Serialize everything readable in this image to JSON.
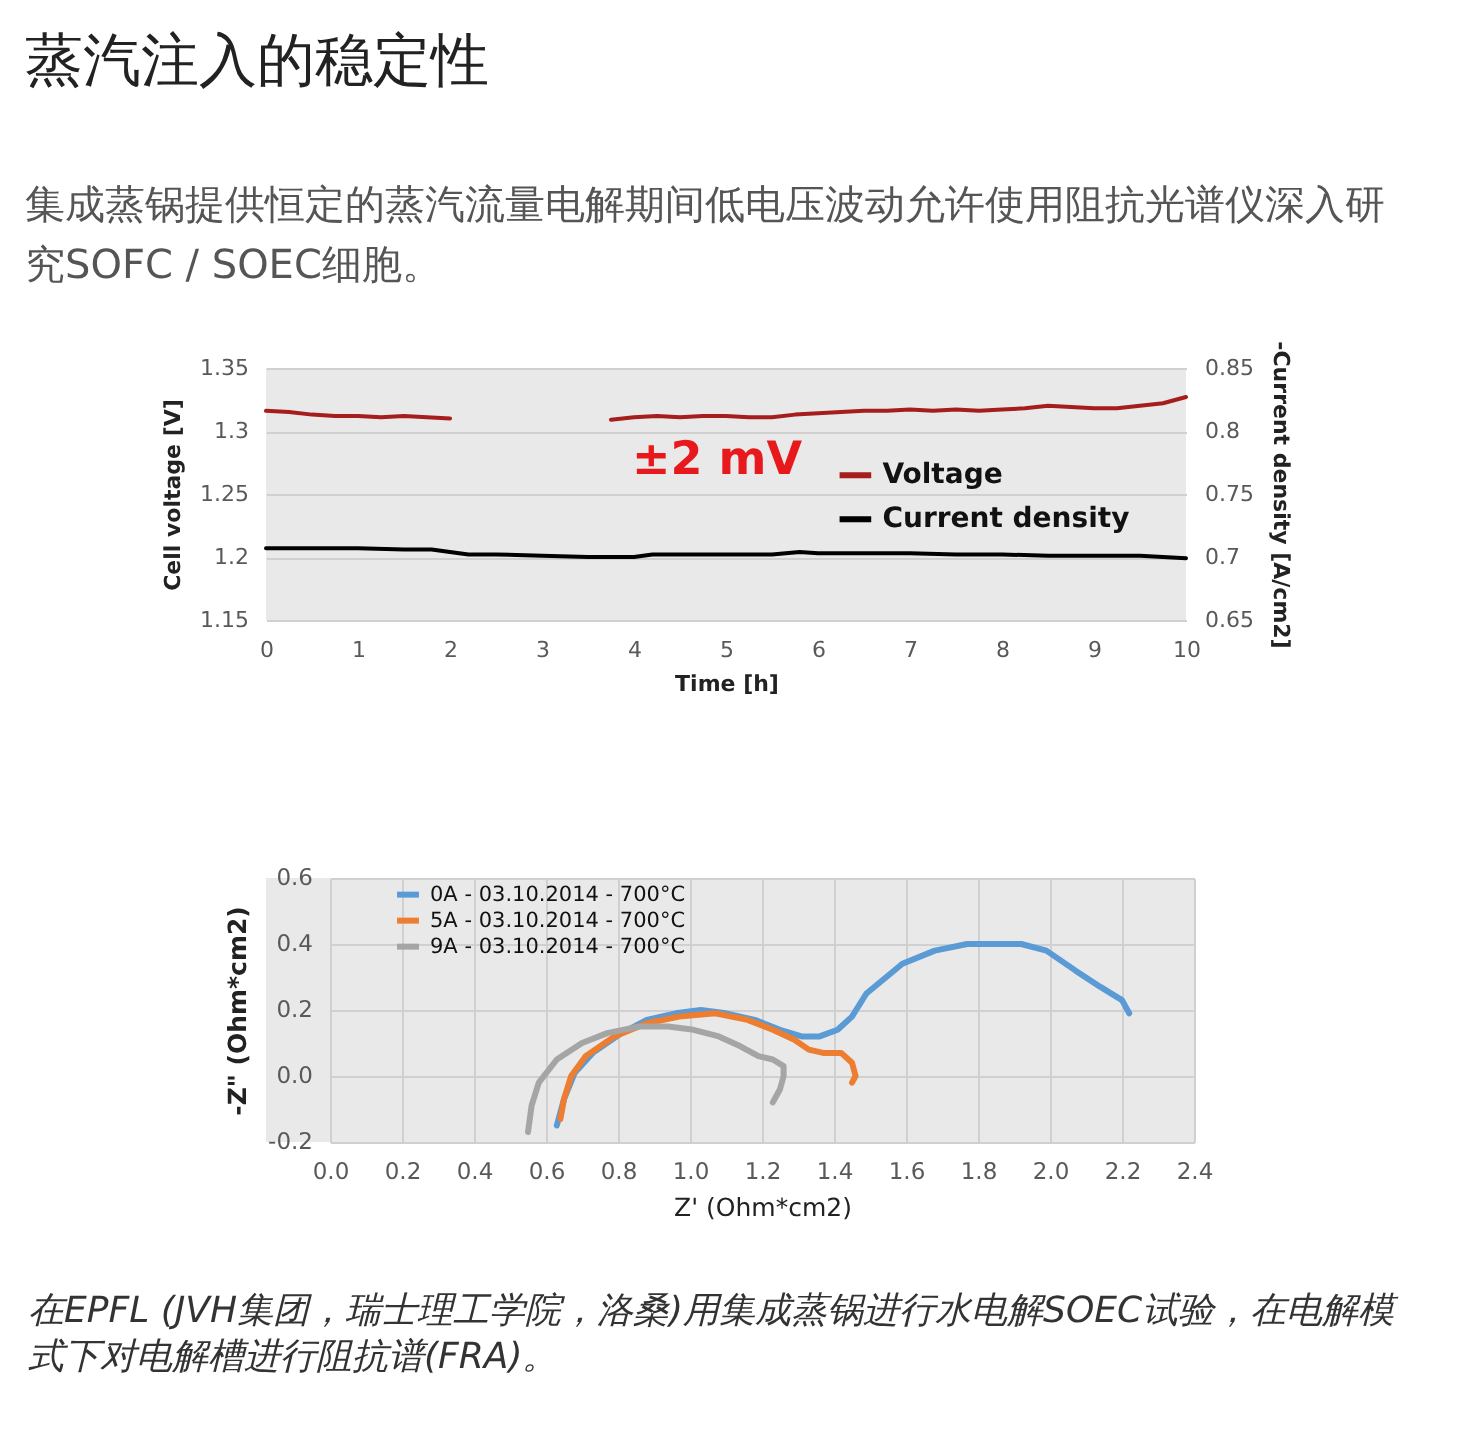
{
  "chart_data": [
    {
      "type": "line",
      "title": "蒸汽注入的稳定性",
      "subtitle": "集成蒸锅提供恒定的蒸汽流量电解期间低电压波动允许使用阻抗光谱仪深入研究SOFC / SOEC细胞。",
      "xlabel": "Time [h]",
      "ylabel": "Cell voltage [V]",
      "y2label": "-Current density [A/cm2]",
      "annotations": [
        "±2 mV"
      ],
      "xlim": [
        0,
        10
      ],
      "xticks": [
        0,
        1,
        2,
        3,
        4,
        5,
        6,
        7,
        8,
        9,
        10
      ],
      "ylim": [
        1.15,
        1.35
      ],
      "yticks": [
        1.15,
        1.2,
        1.25,
        1.3,
        1.35
      ],
      "y2lim": [
        0.65,
        0.85
      ],
      "y2ticks": [
        0.65,
        0.7,
        0.75,
        0.8,
        0.85
      ],
      "grid": "y",
      "legend": "right",
      "series": [
        {
          "name": "Voltage",
          "color": "#a51d1d",
          "x": [
            0,
            0.25,
            0.5,
            0.75,
            1,
            1.25,
            1.5,
            1.75,
            2,
            2.25,
            2.5,
            2.75,
            3,
            3.25,
            3.5,
            3.75,
            4,
            4.25,
            4.5,
            4.75,
            5,
            5.25,
            5.5,
            5.75,
            6,
            6.25,
            6.5,
            6.75,
            7,
            7.25,
            7.5,
            7.75,
            8,
            8.25,
            8.5,
            8.75,
            9,
            9.25,
            9.5,
            9.75,
            10
          ],
          "values": [
            1.316,
            1.315,
            1.313,
            1.312,
            1.312,
            1.311,
            1.312,
            1.311,
            1.31,
            null,
            null,
            null,
            null,
            null,
            null,
            1.309,
            1.311,
            1.312,
            1.311,
            1.312,
            1.312,
            1.311,
            1.311,
            1.313,
            1.314,
            1.315,
            1.316,
            1.316,
            1.317,
            1.316,
            1.317,
            1.316,
            1.317,
            1.318,
            1.32,
            1.319,
            1.318,
            1.318,
            1.32,
            1.322,
            1.327
          ]
        },
        {
          "name": "Current density",
          "color": "#000000",
          "axis": "y2",
          "x": [
            0,
            0.5,
            1,
            1.5,
            1.8,
            2,
            2.2,
            2.5,
            3,
            3.5,
            4,
            4.2,
            4.5,
            5,
            5.5,
            5.8,
            6,
            6.5,
            7,
            7.5,
            8,
            8.5,
            9,
            9.5,
            10
          ],
          "values": [
            0.707,
            0.707,
            0.707,
            0.706,
            0.706,
            0.704,
            0.702,
            0.702,
            0.701,
            0.7,
            0.7,
            0.702,
            0.702,
            0.702,
            0.702,
            0.704,
            0.703,
            0.703,
            0.703,
            0.702,
            0.702,
            0.701,
            0.701,
            0.701,
            0.699
          ]
        }
      ]
    },
    {
      "type": "line",
      "xlabel": "Z' (Ohm*cm2)",
      "ylabel": "-Z\" (Ohm*cm2)",
      "annotations": [
        "在EPFL (JVH集团，瑞士理工学院，洛桑)用集成蒸锅进行水电解SOEC试验，在电解模式下对电解槽进行阻抗谱(FRA)。"
      ],
      "xlim": [
        0,
        2.4
      ],
      "xticks": [
        {
          "value": 0,
          "label": "0.0"
        },
        0.2,
        0.4,
        0.6,
        0.8,
        {
          "value": 1,
          "label": "1.0"
        },
        1.2,
        1.4,
        1.6,
        1.8,
        {
          "value": 2,
          "label": "2.0"
        },
        2.2,
        2.4
      ],
      "ylim": [
        -0.2,
        0.6
      ],
      "yticks": [
        -0.2,
        {
          "value": 0,
          "label": "0.0"
        },
        0.2,
        0.4,
        0.6
      ],
      "grid": true,
      "legend": "top left",
      "series": [
        {
          "name": "0A - 03.10.2014 - 700°C",
          "color": "#5b9bd5",
          "x": [
            0.63,
            0.65,
            0.68,
            0.73,
            0.81,
            0.88,
            0.96,
            1.03,
            1.1,
            1.18,
            1.25,
            1.31,
            1.36,
            1.41,
            1.45,
            1.49,
            1.59,
            1.68,
            1.77,
            1.84,
            1.92,
            1.99,
            2.07,
            2.14,
            2.2,
            2.22
          ],
          "values": [
            -0.15,
            -0.07,
            0.01,
            0.07,
            0.13,
            0.17,
            0.19,
            0.2,
            0.19,
            0.17,
            0.14,
            0.12,
            0.12,
            0.14,
            0.18,
            0.25,
            0.34,
            0.38,
            0.4,
            0.4,
            0.4,
            0.38,
            0.32,
            0.27,
            0.23,
            0.19
          ]
        },
        {
          "name": "5A - 03.10.2014 - 700°C",
          "color": "#ed7d31",
          "x": [
            0.64,
            0.65,
            0.67,
            0.71,
            0.79,
            0.88,
            0.97,
            1.07,
            1.16,
            1.23,
            1.29,
            1.33,
            1.37,
            1.42,
            1.45,
            1.46,
            1.45
          ],
          "values": [
            -0.13,
            -0.07,
            0.0,
            0.06,
            0.12,
            0.16,
            0.18,
            0.19,
            0.17,
            0.14,
            0.11,
            0.08,
            0.07,
            0.07,
            0.04,
            0.0,
            -0.02
          ]
        },
        {
          "name": "9A - 03.10.2014 - 700°C",
          "color": "#a5a5a5",
          "x": [
            0.55,
            0.56,
            0.58,
            0.63,
            0.7,
            0.77,
            0.86,
            0.94,
            1.01,
            1.08,
            1.14,
            1.19,
            1.23,
            1.26,
            1.26,
            1.25,
            1.23
          ],
          "values": [
            -0.17,
            -0.09,
            -0.02,
            0.05,
            0.1,
            0.13,
            0.15,
            0.15,
            0.14,
            0.12,
            0.09,
            0.06,
            0.05,
            0.03,
            0.0,
            -0.04,
            -0.08
          ]
        }
      ]
    }
  ]
}
